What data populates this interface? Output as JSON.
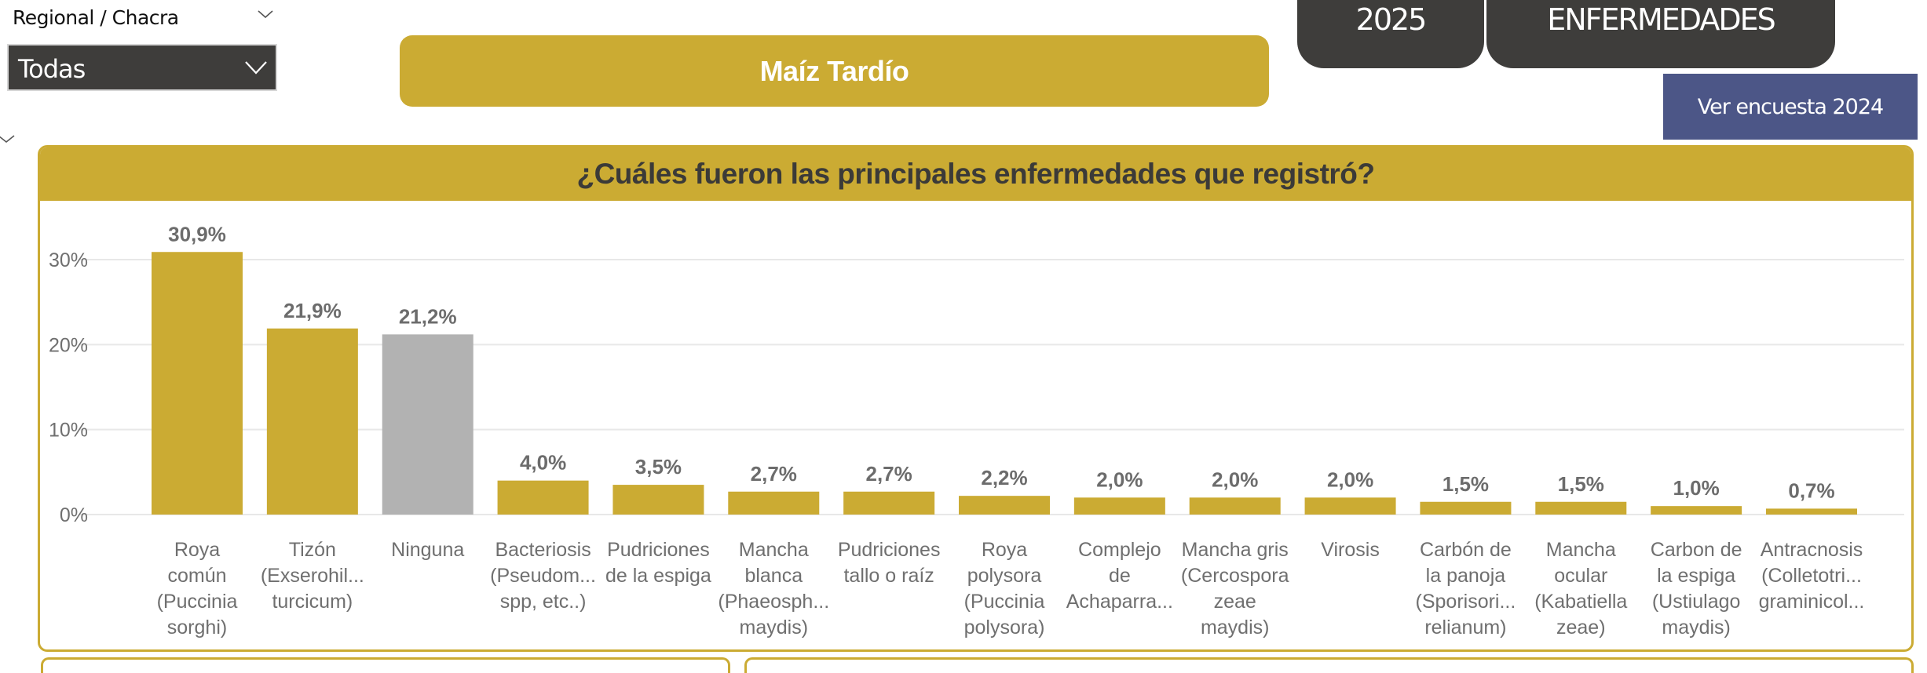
{
  "slicer": {
    "title": "Regional / Chacra",
    "selected_value": "Todas"
  },
  "crop_button": {
    "label": "Maíz Tardío"
  },
  "tabs": {
    "year": "2025",
    "section": "ENFERMEDADES"
  },
  "prev_survey_button": {
    "label": "Ver encuesta 2024"
  },
  "colors": {
    "accent": "#cbab33",
    "none_bar": "#b2b2b2",
    "dark": "#3e3d3b",
    "button_blue": "#4c5687"
  },
  "chart_data": {
    "type": "bar",
    "title": "¿Cuáles fueron las principales enfermedades que registró?",
    "xlabel": "",
    "ylabel": "",
    "ylim": [
      0,
      31
    ],
    "y_ticks": [
      0,
      10,
      20,
      30
    ],
    "y_tick_labels": [
      "0%",
      "10%",
      "20%",
      "30%"
    ],
    "grid": true,
    "categories": [
      [
        "Roya",
        "común",
        "(Puccinia",
        "sorghi)"
      ],
      [
        "Tizón",
        "(Exserohil...",
        "turcicum)"
      ],
      [
        "Ninguna"
      ],
      [
        "Bacteriosis",
        "(Pseudom...",
        "spp, etc..)"
      ],
      [
        "Pudriciones",
        "de la espiga"
      ],
      [
        "Mancha",
        "blanca",
        "(Phaeosph...",
        "maydis)"
      ],
      [
        "Pudriciones",
        "tallo o raíz"
      ],
      [
        "Roya",
        "polysora",
        "(Puccinia",
        "polysora)"
      ],
      [
        "Complejo",
        "de",
        "Achaparra..."
      ],
      [
        "Mancha gris",
        "(Cercospora",
        "zeae",
        "maydis)"
      ],
      [
        "Virosis"
      ],
      [
        "Carbón de",
        "la panoja",
        "(Sporisori...",
        "relianum)"
      ],
      [
        "Mancha",
        "ocular",
        "(Kabatiella",
        "zeae)"
      ],
      [
        "Carbon de",
        "la espiga",
        "(Ustiulago",
        "maydis)"
      ],
      [
        "Antracnosis",
        "(Colletotri...",
        "graminicol..."
      ]
    ],
    "values": [
      30.9,
      21.9,
      21.2,
      4.0,
      3.5,
      2.7,
      2.7,
      2.2,
      2.0,
      2.0,
      2.0,
      1.5,
      1.5,
      1.0,
      0.7
    ],
    "data_labels": [
      "30,9%",
      "21,9%",
      "21,2%",
      "4,0%",
      "3,5%",
      "2,7%",
      "2,7%",
      "2,2%",
      "2,0%",
      "2,0%",
      "2,0%",
      "1,5%",
      "1,5%",
      "1,0%",
      "0,7%"
    ],
    "highlight_category_index": 2
  }
}
